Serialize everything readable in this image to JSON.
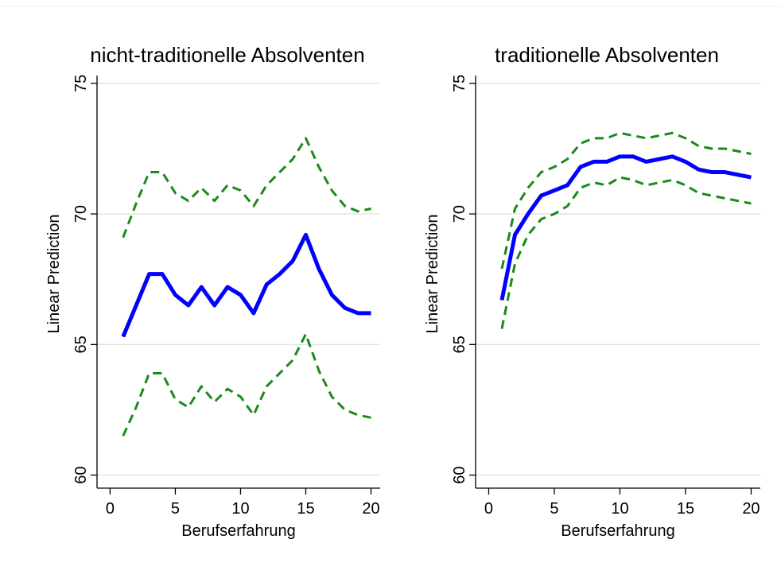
{
  "chart_data": [
    {
      "type": "line",
      "title": "nicht-traditionelle Absolventen",
      "x_label": "Berufserfahrung",
      "y_label": "Linear Prediction",
      "x": [
        1,
        2,
        3,
        4,
        5,
        6,
        7,
        8,
        9,
        10,
        11,
        12,
        13,
        14,
        15,
        16,
        17,
        18,
        19,
        20
      ],
      "series": [
        {
          "color": "#0000ff",
          "style": "solid",
          "values": [
            65.3,
            66.5,
            67.7,
            67.7,
            66.9,
            66.5,
            67.2,
            66.5,
            67.2,
            66.9,
            66.2,
            67.3,
            67.7,
            68.2,
            69.2,
            67.9,
            66.9,
            66.4,
            66.2,
            66.2
          ]
        },
        {
          "color": "#1a8a1a",
          "style": "dashed",
          "values": [
            69.1,
            70.4,
            71.6,
            71.6,
            70.8,
            70.5,
            71.0,
            70.5,
            71.1,
            70.9,
            70.3,
            71.1,
            71.6,
            72.1,
            72.9,
            71.8,
            70.9,
            70.3,
            70.1,
            70.2
          ]
        },
        {
          "color": "#1a8a1a",
          "style": "dashed",
          "values": [
            61.5,
            62.6,
            63.9,
            63.9,
            62.9,
            62.6,
            63.4,
            62.8,
            63.3,
            63.0,
            62.3,
            63.4,
            63.9,
            64.4,
            65.4,
            64.0,
            63.0,
            62.5,
            62.3,
            62.2
          ]
        }
      ],
      "xlim": [
        -1,
        20.7
      ],
      "ylim": [
        59.5,
        75.3
      ],
      "xticks": [
        0,
        5,
        10,
        15,
        20
      ],
      "yticks": [
        60,
        65,
        70,
        75
      ],
      "grid": true
    },
    {
      "type": "line",
      "title": "traditionelle Absolventen",
      "x_label": "Berufserfahrung",
      "y_label": "Linear Prediction",
      "x": [
        1,
        2,
        3,
        4,
        5,
        6,
        7,
        8,
        9,
        10,
        11,
        12,
        13,
        14,
        15,
        16,
        17,
        18,
        19,
        20
      ],
      "series": [
        {
          "color": "#0000ff",
          "style": "solid",
          "values": [
            66.7,
            69.2,
            70.0,
            70.7,
            70.9,
            71.1,
            71.8,
            72.0,
            72.0,
            72.2,
            72.2,
            72.0,
            72.1,
            72.2,
            72.0,
            71.7,
            71.6,
            71.6,
            71.5,
            71.4
          ]
        },
        {
          "color": "#1a8a1a",
          "style": "dashed",
          "values": [
            67.9,
            70.2,
            71.0,
            71.6,
            71.8,
            72.1,
            72.7,
            72.9,
            72.9,
            73.1,
            73.0,
            72.9,
            73.0,
            73.1,
            72.9,
            72.6,
            72.5,
            72.5,
            72.4,
            72.3
          ]
        },
        {
          "color": "#1a8a1a",
          "style": "dashed",
          "values": [
            65.6,
            68.1,
            69.2,
            69.8,
            70.0,
            70.3,
            71.0,
            71.2,
            71.1,
            71.4,
            71.3,
            71.1,
            71.2,
            71.3,
            71.1,
            70.8,
            70.7,
            70.6,
            70.5,
            70.4
          ]
        }
      ],
      "xlim": [
        -1,
        20.7
      ],
      "ylim": [
        59.5,
        75.3
      ],
      "xticks": [
        0,
        5,
        10,
        15,
        20
      ],
      "yticks": [
        60,
        65,
        70,
        75
      ],
      "grid": true
    }
  ]
}
